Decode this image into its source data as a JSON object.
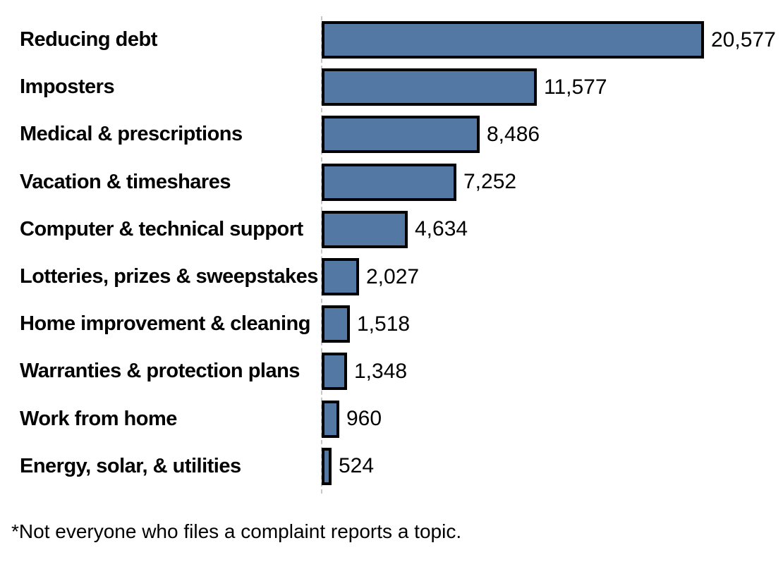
{
  "chart_data": {
    "type": "bar",
    "orientation": "horizontal",
    "title": "",
    "xlabel": "",
    "ylabel": "",
    "xlim": [
      0,
      20577
    ],
    "grid": false,
    "legend": false,
    "categories": [
      "Reducing debt",
      "Imposters",
      "Medical & prescriptions",
      "Vacation & timeshares",
      "Computer & technical support",
      "Lotteries, prizes & sweepstakes",
      "Home improvement & cleaning",
      "Warranties & protection plans",
      "Work from home",
      "Energy, solar, & utilities"
    ],
    "values": [
      20577,
      11577,
      8486,
      7252,
      4634,
      2027,
      1518,
      1348,
      960,
      524
    ],
    "value_labels": [
      "20,577",
      "11,577",
      "8,486",
      "7,252",
      "4,634",
      "2,027",
      "1,518",
      "1,348",
      "960",
      "524"
    ],
    "footnote": "*Not everyone who files a complaint reports a topic.",
    "colors": {
      "bar_fill": "#5478A4",
      "bar_border": "#000000",
      "axis_line": "#C8C8C8",
      "text": "#000000",
      "background": "#FFFFFF"
    }
  }
}
